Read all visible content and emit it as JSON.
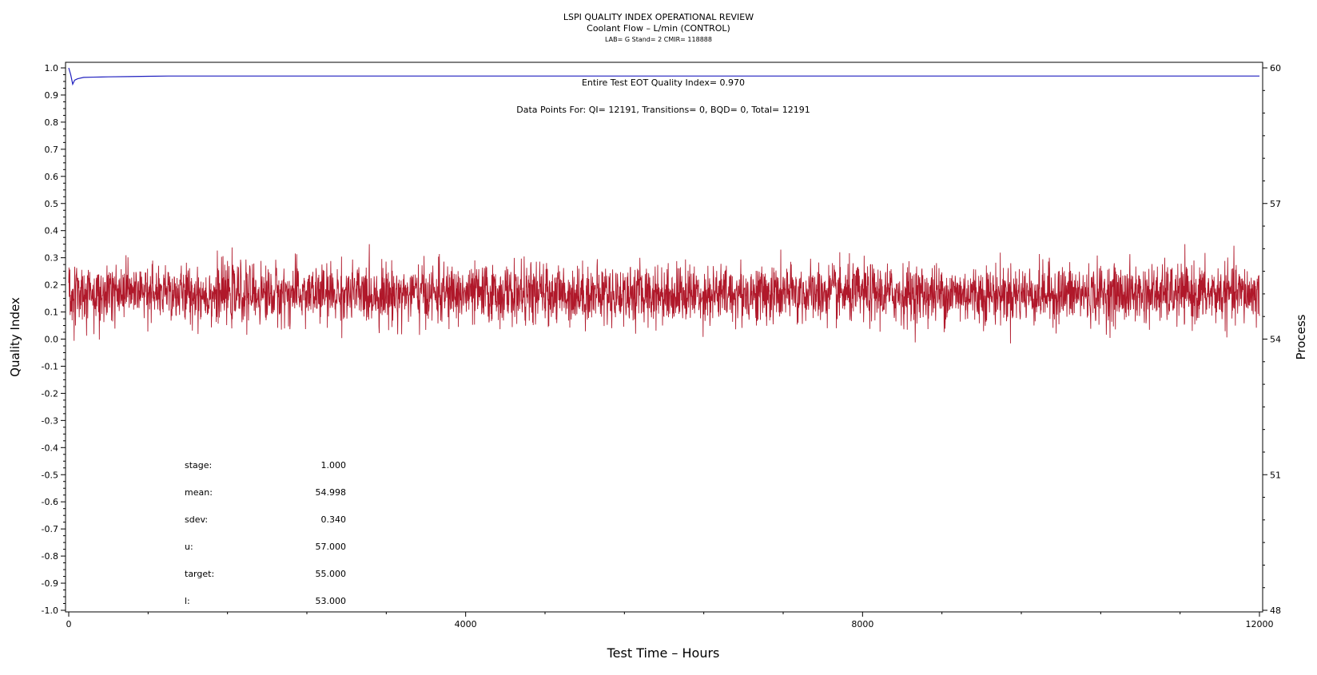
{
  "chart_data": {
    "type": "line",
    "title": "LSPI QUALITY INDEX OPERATIONAL REVIEW",
    "subtitle": "Coolant Flow – L/min (CONTROL)",
    "subtitle2": "LAB= G Stand= 2 CMIR= 118888",
    "xlabel": "Test Time – Hours",
    "ylabel": "Quality Index",
    "y2label": "Process",
    "xlim": [
      0,
      12000
    ],
    "ylim": [
      -1.0,
      1.0
    ],
    "y2lim": [
      48,
      60
    ],
    "x_ticks": [
      "0",
      "4000",
      "8000",
      "12000"
    ],
    "y_ticks": [
      "1.0",
      "0.9",
      "0.8",
      "0.7",
      "0.6",
      "0.5",
      "0.4",
      "0.3",
      "0.2",
      "0.1",
      "0.0",
      "-0.1",
      "-0.2",
      "-0.3",
      "-0.4",
      "-0.5",
      "-0.6",
      "-0.7",
      "-0.8",
      "-0.9",
      "-1.0"
    ],
    "y2_ticks": [
      "60",
      "57",
      "54",
      "51",
      "48"
    ],
    "grid": false,
    "series": [
      {
        "name": "",
        "axis": "left",
        "color": "#1f1fbf",
        "description_level": "quality index converging",
        "x": [
          0,
          20,
          40,
          60,
          90,
          150,
          250,
          400,
          600,
          800,
          1000,
          12000
        ],
        "y": [
          1.0,
          0.975,
          0.94,
          0.955,
          0.96,
          0.965,
          0.966,
          0.967,
          0.968,
          0.969,
          0.97,
          0.97
        ]
      },
      {
        "name": "",
        "axis": "right",
        "color": "#b0182a",
        "x_range": [
          0,
          12000
        ],
        "mean": 54.998,
        "sdev": 0.34,
        "min_approx": 53.65,
        "max_approx": 56.1,
        "points": 12191
      }
    ],
    "annotations": {
      "eot": "Entire Test EOT Quality Index=   0.970",
      "points": "Data Points For: QI= 12191, Transitions=     0, BQD=     0, Total= 12191"
    },
    "stats": [
      {
        "label": "stage:",
        "value": "1.000"
      },
      {
        "label": "mean:",
        "value": "54.998"
      },
      {
        "label": "sdev:",
        "value": "0.340"
      },
      {
        "label": "u:",
        "value": "57.000"
      },
      {
        "label": "target:",
        "value": "55.000"
      },
      {
        "label": "l:",
        "value": "53.000"
      }
    ]
  }
}
